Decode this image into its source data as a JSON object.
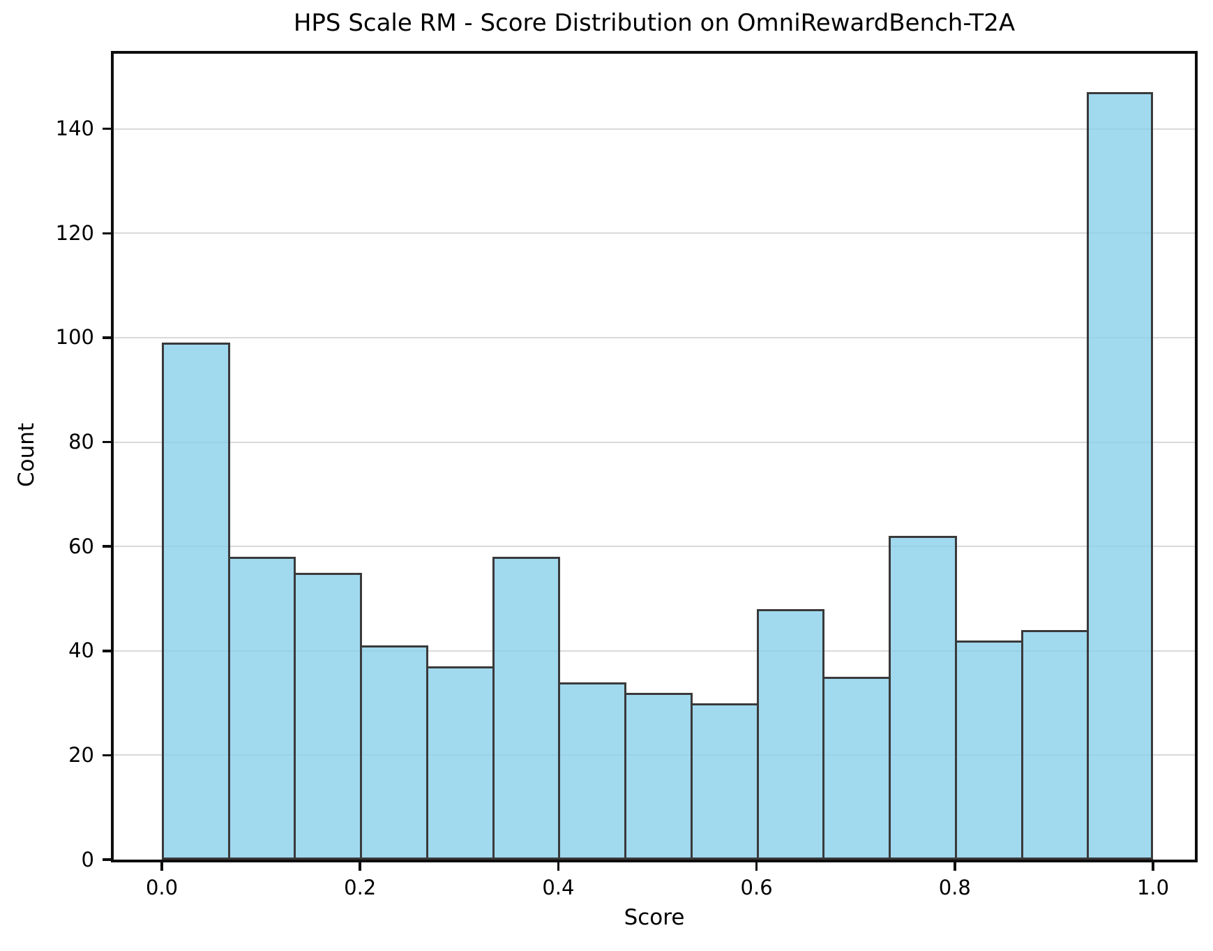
{
  "chart_data": {
    "type": "bar",
    "subtype": "histogram",
    "title": "HPS Scale RM - Score Distribution on OmniRewardBench-T2A",
    "xlabel": "Score",
    "ylabel": "Count",
    "bin_edges": [
      0.0,
      0.0667,
      0.1333,
      0.2,
      0.2667,
      0.3333,
      0.4,
      0.4667,
      0.5333,
      0.6,
      0.6667,
      0.7333,
      0.8,
      0.8667,
      0.9333,
      1.0
    ],
    "values": [
      99,
      58,
      55,
      41,
      37,
      58,
      34,
      32,
      30,
      48,
      35,
      62,
      42,
      44,
      147
    ],
    "x_ticks": [
      {
        "value": 0.0,
        "label": "0.0"
      },
      {
        "value": 0.2,
        "label": "0.2"
      },
      {
        "value": 0.4,
        "label": "0.4"
      },
      {
        "value": 0.6,
        "label": "0.6"
      },
      {
        "value": 0.8,
        "label": "0.8"
      },
      {
        "value": 1.0,
        "label": "1.0"
      }
    ],
    "y_ticks": [
      {
        "value": 0,
        "label": "0"
      },
      {
        "value": 20,
        "label": "20"
      },
      {
        "value": 40,
        "label": "40"
      },
      {
        "value": 60,
        "label": "60"
      },
      {
        "value": 80,
        "label": "80"
      },
      {
        "value": 100,
        "label": "100"
      },
      {
        "value": 120,
        "label": "120"
      },
      {
        "value": 140,
        "label": "140"
      }
    ],
    "ylim": [
      0,
      155
    ],
    "xlim": [
      0.0,
      1.0
    ],
    "grid": "y",
    "legend": "none",
    "colors": {
      "bar_fill": "rgba(135, 206, 235, 0.78)",
      "bar_edge": "#3a3a3a",
      "gridline": "#d9d9d9",
      "spine": "#0d0d0d",
      "background": "#ffffff",
      "text": "#000000"
    }
  }
}
